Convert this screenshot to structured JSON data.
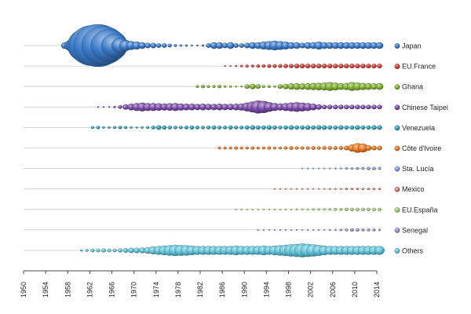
{
  "chart_data": {
    "type": "bubble-timeline",
    "title": "",
    "xlabel": "",
    "ylabel": "",
    "xlim": [
      1950,
      2014
    ],
    "x_ticks": [
      "1950",
      "1954",
      "1958",
      "1962",
      "1966",
      "1970",
      "1974",
      "1978",
      "1982",
      "1986",
      "1990",
      "1994",
      "1998",
      "2002",
      "2006",
      "2010",
      "2014"
    ],
    "legend_position": "right",
    "grid": "horizontal row lines only",
    "series": [
      {
        "name": "Japan",
        "color": "#3a7ac8",
        "start": 1957,
        "sizes": [
          0.15,
          0.25,
          0.4,
          0.55,
          0.8,
          0.95,
          1.0,
          0.9,
          0.75,
          0.55,
          0.35,
          0.25,
          0.2,
          0.18,
          0.15,
          0.12,
          0.12,
          0.1,
          0.1,
          0.08,
          0.06,
          0.05,
          0.05,
          0.04,
          0.04,
          0.05,
          0.1,
          0.15,
          0.15,
          0.12,
          0.15,
          0.1,
          0.1,
          0.12,
          0.15,
          0.15,
          0.18,
          0.2,
          0.22,
          0.2,
          0.18,
          0.15,
          0.15,
          0.12,
          0.15,
          0.15,
          0.18,
          0.15,
          0.15,
          0.15,
          0.15,
          0.15,
          0.15,
          0.15,
          0.15,
          0.15,
          0.15,
          0.15
        ]
      },
      {
        "name": "EU.France",
        "color": "#cc3d34",
        "start": 1986,
        "sizes": [
          0.02,
          0.03,
          0.04,
          0.05,
          0.06,
          0.06,
          0.07,
          0.07,
          0.08,
          0.08,
          0.08,
          0.09,
          0.09,
          0.1,
          0.1,
          0.1,
          0.1,
          0.1,
          0.1,
          0.1,
          0.1,
          0.1,
          0.1,
          0.1,
          0.1,
          0.1,
          0.1,
          0.1,
          0.1
        ]
      },
      {
        "name": "Ghana",
        "color": "#7fae32",
        "start": 1981,
        "sizes": [
          0.06,
          0.07,
          0.06,
          0.06,
          0.07,
          0.05,
          0.05,
          0.04,
          0.04,
          0.1,
          0.12,
          0.1,
          0.06,
          0.06,
          0.05,
          0.1,
          0.12,
          0.14,
          0.15,
          0.14,
          0.15,
          0.16,
          0.17,
          0.18,
          0.2,
          0.18,
          0.15,
          0.16,
          0.2,
          0.18,
          0.16,
          0.15,
          0.14,
          0.15
        ]
      },
      {
        "name": "Chinese Taipei",
        "color": "#7a4aa8",
        "start": 1963,
        "sizes": [
          0.02,
          0.02,
          0.03,
          0.05,
          0.08,
          0.12,
          0.15,
          0.18,
          0.2,
          0.18,
          0.18,
          0.17,
          0.16,
          0.17,
          0.18,
          0.16,
          0.15,
          0.15,
          0.14,
          0.15,
          0.14,
          0.14,
          0.15,
          0.14,
          0.14,
          0.15,
          0.16,
          0.2,
          0.25,
          0.3,
          0.28,
          0.22,
          0.18,
          0.16,
          0.18,
          0.2,
          0.22,
          0.2,
          0.18,
          0.15,
          0.12,
          0.1,
          0.1,
          0.1,
          0.1,
          0.1,
          0.1,
          0.1,
          0.1,
          0.1,
          0.1,
          0.1
        ]
      },
      {
        "name": "Venezuela",
        "color": "#2b9fb8",
        "start": 1962,
        "sizes": [
          0.06,
          0.07,
          0.05,
          0.05,
          0.06,
          0.07,
          0.06,
          0.05,
          0.04,
          0.05,
          0.06,
          0.08,
          0.1,
          0.09,
          0.08,
          0.07,
          0.07,
          0.08,
          0.09,
          0.08,
          0.07,
          0.08,
          0.09,
          0.08,
          0.08,
          0.09,
          0.08,
          0.08,
          0.09,
          0.1,
          0.09,
          0.09,
          0.1,
          0.09,
          0.08,
          0.09,
          0.1,
          0.09,
          0.09,
          0.1,
          0.09,
          0.1,
          0.1,
          0.09,
          0.09,
          0.1,
          0.09,
          0.09,
          0.1,
          0.09,
          0.09,
          0.1,
          0.1
        ]
      },
      {
        "name": "Côte d'Ivoire",
        "color": "#e8771f",
        "start": 1985,
        "sizes": [
          0.06,
          0.06,
          0.06,
          0.07,
          0.06,
          0.06,
          0.07,
          0.06,
          0.06,
          0.07,
          0.06,
          0.06,
          0.07,
          0.08,
          0.07,
          0.07,
          0.07,
          0.08,
          0.07,
          0.08,
          0.08,
          0.08,
          0.08,
          0.1,
          0.16,
          0.22,
          0.2,
          0.12,
          0.1,
          0.1
        ]
      },
      {
        "name": "Sta. Lucía",
        "color": "#7f9fd0",
        "start": 2000,
        "sizes": [
          0.01,
          0.02,
          0.02,
          0.02,
          0.03,
          0.03,
          0.04,
          0.04,
          0.05,
          0.05,
          0.06,
          0.06,
          0.07,
          0.07,
          0.06
        ]
      },
      {
        "name": "Mexico",
        "color": "#d07f80",
        "start": 1995,
        "sizes": [
          0.01,
          0.02,
          0.02,
          0.02,
          0.02,
          0.03,
          0.03,
          0.03,
          0.03,
          0.03,
          0.04,
          0.04,
          0.04,
          0.05,
          0.05,
          0.05,
          0.05,
          0.05,
          0.05,
          0.05
        ]
      },
      {
        "name": "EU.España",
        "color": "#a8c870",
        "start": 1988,
        "sizes": [
          0.01,
          0.01,
          0.02,
          0.02,
          0.02,
          0.02,
          0.03,
          0.03,
          0.03,
          0.03,
          0.03,
          0.04,
          0.04,
          0.04,
          0.05,
          0.05,
          0.05,
          0.05,
          0.06,
          0.06,
          0.07,
          0.07,
          0.07,
          0.07,
          0.07,
          0.07,
          0.07
        ]
      },
      {
        "name": "Senegal",
        "color": "#9a8fc4",
        "start": 1992,
        "sizes": [
          0.01,
          0.01,
          0.01,
          0.01,
          0.01,
          0.02,
          0.02,
          0.02,
          0.02,
          0.02,
          0.03,
          0.03,
          0.03,
          0.04,
          0.04,
          0.05,
          0.06,
          0.07,
          0.07,
          0.06,
          0.06,
          0.06,
          0.05
        ]
      },
      {
        "name": "Others",
        "color": "#5fc3d8",
        "start": 1960,
        "sizes": [
          0.05,
          0.06,
          0.08,
          0.08,
          0.09,
          0.08,
          0.08,
          0.09,
          0.1,
          0.12,
          0.12,
          0.13,
          0.15,
          0.18,
          0.2,
          0.22,
          0.24,
          0.26,
          0.25,
          0.24,
          0.22,
          0.2,
          0.2,
          0.2,
          0.2,
          0.2,
          0.2,
          0.2,
          0.22,
          0.2,
          0.2,
          0.2,
          0.2,
          0.22,
          0.2,
          0.22,
          0.24,
          0.26,
          0.28,
          0.3,
          0.32,
          0.3,
          0.28,
          0.25,
          0.22,
          0.2,
          0.2,
          0.2,
          0.2,
          0.2,
          0.2,
          0.2,
          0.2,
          0.2,
          0.2
        ]
      }
    ]
  }
}
